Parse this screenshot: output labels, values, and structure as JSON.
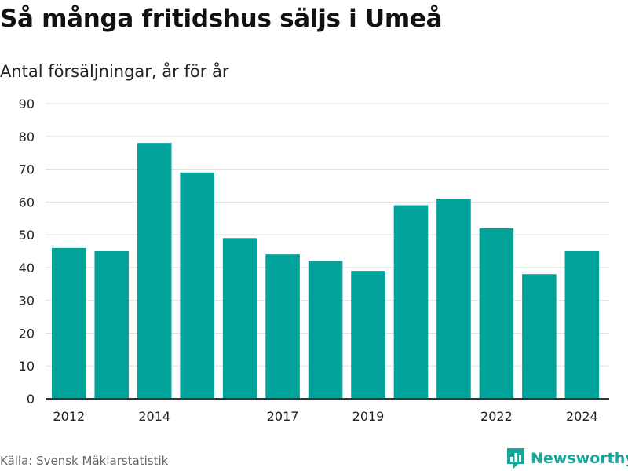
{
  "header": {
    "title": "Så många fritidshus säljs i Umeå",
    "subtitle": "Antal försäljningar, år för år"
  },
  "footer": {
    "source": "Källa: Svensk Mäklarstatistik",
    "brand": "Newsworthy"
  },
  "colors": {
    "bar": "#00a29a",
    "grid": "#e0e0e0",
    "axis": "#333333",
    "brand": "#16a99b"
  },
  "chart_data": {
    "type": "bar",
    "categories": [
      "2012",
      "2013",
      "2014",
      "2015",
      "2016",
      "2017",
      "2018",
      "2019",
      "2020",
      "2021",
      "2022",
      "2023",
      "2024"
    ],
    "values": [
      46,
      45,
      78,
      69,
      49,
      44,
      42,
      39,
      59,
      61,
      52,
      38,
      45
    ],
    "x_tick_labels": [
      "2012",
      "2014",
      "2017",
      "2019",
      "2022",
      "2024"
    ],
    "y_ticks": [
      0,
      10,
      20,
      30,
      40,
      50,
      60,
      70,
      80,
      90
    ],
    "ylim": [
      0,
      90
    ],
    "grid": true,
    "legend": false
  }
}
